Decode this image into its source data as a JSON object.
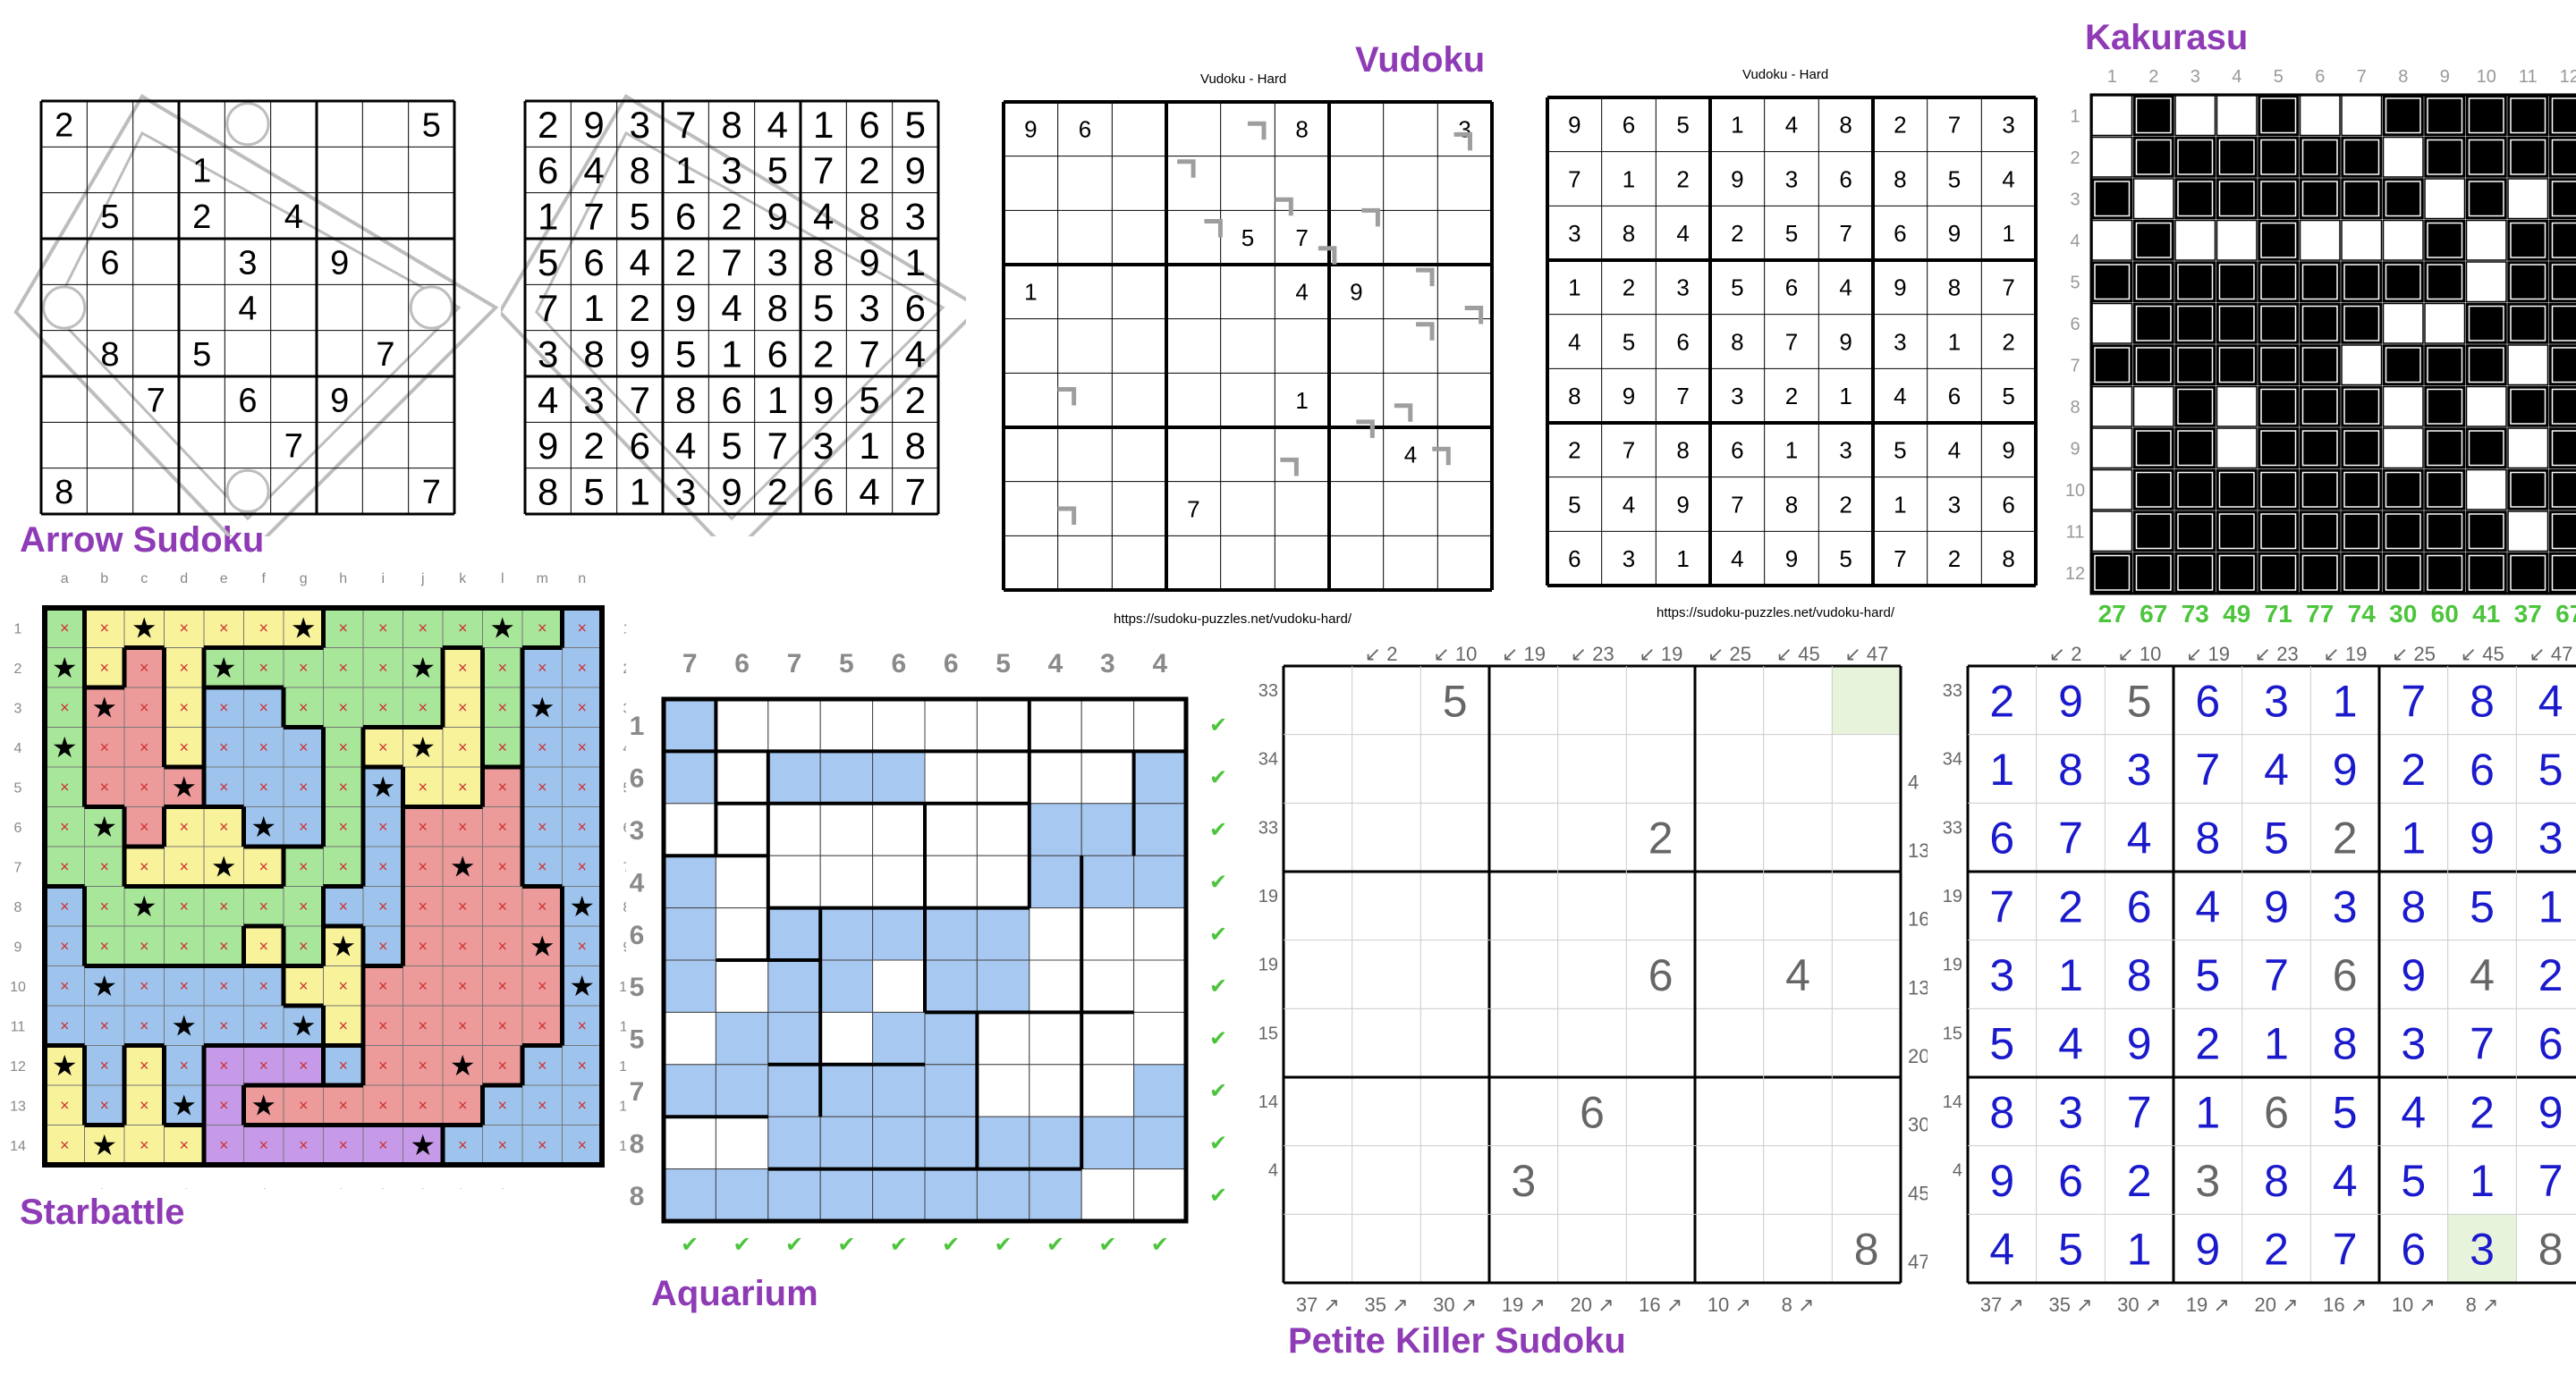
{
  "labels": {
    "arrow": "Arrow Sudoku",
    "starbattle": "Starbattle",
    "aquarium": "Aquarium",
    "vudoku": "Vudoku",
    "kakurasu": "Kakurasu",
    "petite": "Petite Killer Sudoku"
  },
  "vudoku": {
    "title1": "Vudoku - Hard",
    "title2": "Vudoku - Hard",
    "url1": "https://sudoku-puzzles.net/vudoku-hard/",
    "url2": "https://sudoku-puzzles.net/vudoku-hard/",
    "given": [
      [
        "9",
        "6",
        "",
        "",
        "",
        "8",
        "",
        "",
        "3"
      ],
      [
        "",
        "",
        "",
        "",
        "",
        "",
        "",
        "",
        ""
      ],
      [
        "",
        "",
        "",
        "",
        "5",
        "7",
        "",
        "",
        ""
      ],
      [
        "1",
        "",
        "",
        "",
        "",
        "4",
        "9",
        "",
        ""
      ],
      [
        "",
        "",
        "",
        "",
        "",
        "",
        "",
        "",
        ""
      ],
      [
        "",
        "",
        "",
        "",
        "",
        "1",
        "",
        "",
        ""
      ],
      [
        "",
        "",
        "",
        "",
        "",
        "",
        "",
        "4",
        ""
      ],
      [
        "",
        "",
        "",
        "7",
        "",
        "",
        "",
        "",
        ""
      ],
      [
        "",
        "",
        "",
        "",
        "",
        "",
        "",
        "",
        ""
      ]
    ],
    "solution": [
      [
        "9",
        "6",
        "5",
        "1",
        "4",
        "8",
        "2",
        "7",
        "3"
      ],
      [
        "7",
        "1",
        "2",
        "9",
        "3",
        "6",
        "8",
        "5",
        "4"
      ],
      [
        "3",
        "8",
        "4",
        "2",
        "5",
        "7",
        "6",
        "9",
        "1"
      ],
      [
        "1",
        "2",
        "3",
        "5",
        "6",
        "4",
        "9",
        "8",
        "7"
      ],
      [
        "4",
        "5",
        "6",
        "8",
        "7",
        "9",
        "3",
        "1",
        "2"
      ],
      [
        "8",
        "9",
        "7",
        "3",
        "2",
        "1",
        "4",
        "6",
        "5"
      ],
      [
        "2",
        "7",
        "8",
        "6",
        "1",
        "3",
        "5",
        "4",
        "9"
      ],
      [
        "5",
        "4",
        "9",
        "7",
        "8",
        "2",
        "1",
        "3",
        "6"
      ],
      [
        "6",
        "3",
        "1",
        "4",
        "9",
        "5",
        "7",
        "2",
        "8"
      ]
    ]
  },
  "arrow": {
    "given": [
      [
        "2",
        "",
        "",
        "",
        "",
        "",
        "",
        "",
        "5"
      ],
      [
        "",
        "",
        "",
        "1",
        "",
        "",
        "",
        "",
        ""
      ],
      [
        "",
        "5",
        "",
        "2",
        "",
        "4",
        "",
        "",
        ""
      ],
      [
        "",
        "6",
        "",
        "",
        "3",
        "",
        "9",
        "",
        ""
      ],
      [
        "",
        "",
        "",
        "",
        "4",
        "",
        "",
        "",
        ""
      ],
      [
        "",
        "8",
        "",
        "5",
        "",
        "",
        "",
        "7",
        ""
      ],
      [
        "",
        "",
        "7",
        "",
        "6",
        "",
        "9",
        "",
        ""
      ],
      [
        "",
        "",
        "",
        "",
        "",
        "7",
        "",
        "",
        ""
      ],
      [
        "8",
        "",
        "",
        "",
        "",
        "",
        "",
        "",
        "7"
      ]
    ],
    "solution": [
      [
        "2",
        "9",
        "3",
        "7",
        "8",
        "4",
        "1",
        "6",
        "5"
      ],
      [
        "6",
        "4",
        "8",
        "1",
        "3",
        "5",
        "7",
        "2",
        "9"
      ],
      [
        "1",
        "7",
        "5",
        "6",
        "2",
        "9",
        "4",
        "8",
        "3"
      ],
      [
        "5",
        "6",
        "4",
        "2",
        "7",
        "3",
        "8",
        "9",
        "1"
      ],
      [
        "7",
        "1",
        "2",
        "9",
        "4",
        "8",
        "5",
        "3",
        "6"
      ],
      [
        "3",
        "8",
        "9",
        "5",
        "1",
        "6",
        "2",
        "7",
        "4"
      ],
      [
        "4",
        "3",
        "7",
        "8",
        "6",
        "1",
        "9",
        "5",
        "2"
      ],
      [
        "9",
        "2",
        "6",
        "4",
        "5",
        "7",
        "3",
        "1",
        "8"
      ],
      [
        "8",
        "5",
        "1",
        "3",
        "9",
        "2",
        "6",
        "4",
        "7"
      ]
    ]
  },
  "kakurasu": {
    "col_labels": [
      "1",
      "2",
      "3",
      "4",
      "5",
      "6",
      "7",
      "8",
      "9",
      "10",
      "11",
      "12"
    ],
    "row_labels": [
      "1",
      "2",
      "3",
      "4",
      "5",
      "6",
      "7",
      "8",
      "9",
      "10",
      "11",
      "12"
    ],
    "bottom_clues": [
      "27",
      "67",
      "73",
      "49",
      "71",
      "77",
      "74",
      "30",
      "60",
      "41",
      "37",
      "67"
    ],
    "grid": [
      [
        0,
        1,
        0,
        0,
        1,
        0,
        0,
        1,
        1,
        1,
        1,
        1
      ],
      [
        0,
        1,
        1,
        1,
        1,
        1,
        1,
        0,
        1,
        1,
        1,
        1
      ],
      [
        1,
        0,
        1,
        1,
        1,
        1,
        1,
        1,
        0,
        1,
        0,
        1
      ],
      [
        0,
        1,
        0,
        0,
        1,
        0,
        0,
        0,
        1,
        0,
        1,
        1
      ],
      [
        1,
        1,
        1,
        1,
        1,
        1,
        1,
        1,
        1,
        0,
        1,
        1
      ],
      [
        0,
        1,
        1,
        1,
        1,
        1,
        1,
        0,
        0,
        1,
        1,
        1
      ],
      [
        1,
        1,
        1,
        1,
        1,
        1,
        0,
        1,
        1,
        1,
        0,
        1
      ],
      [
        0,
        0,
        1,
        0,
        1,
        1,
        1,
        0,
        1,
        0,
        1,
        1
      ],
      [
        0,
        1,
        1,
        0,
        1,
        1,
        1,
        0,
        1,
        1,
        0,
        1
      ],
      [
        0,
        1,
        1,
        1,
        1,
        1,
        1,
        1,
        1,
        0,
        1,
        1
      ],
      [
        0,
        1,
        1,
        1,
        1,
        1,
        1,
        1,
        1,
        1,
        0,
        1
      ],
      [
        1,
        1,
        1,
        1,
        1,
        1,
        1,
        1,
        1,
        1,
        1,
        1
      ]
    ]
  },
  "starbattle": {
    "col_letters": [
      "a",
      "b",
      "c",
      "d",
      "e",
      "f",
      "g",
      "h",
      "i",
      "j",
      "k",
      "l",
      "m",
      "n"
    ],
    "row_numbers": [
      "1",
      "2",
      "3",
      "4",
      "5",
      "6",
      "7",
      "8",
      "9",
      "10",
      "11",
      "12",
      "13",
      "14"
    ],
    "colors": {
      "Y": "#f8f29a",
      "G": "#a8e69a",
      "R": "#ec9a9a",
      "B": "#9ec4ee",
      "P": "#c69ae8"
    },
    "regions": [
      "GYYYYYYGGGGGGB",
      "GYRYGGGGGGYGBB",
      "GRRYBBGGGGYGBB",
      "GRRYBBBGYYYGBB",
      "GRRRBBBGBYYRBB",
      "GGRYYBBGBRRRBB",
      "GGYYYYGGBRRRBB",
      "BGGGGGGBBRRRRB",
      "BGGGGYGYBRRRRB",
      "BBBBBBYYRRRRRB",
      "BBBBBBBYRRRRRB",
      "YBYBPPPBRRRRBB",
      "YBYBPRRRRRRBBB",
      "YYYYPPPPPPBBBB"
    ],
    "stars": [
      [
        0,
        2
      ],
      [
        0,
        6
      ],
      [
        0,
        11
      ],
      [
        1,
        0
      ],
      [
        1,
        4
      ],
      [
        1,
        9
      ],
      [
        2,
        1
      ],
      [
        2,
        12
      ],
      [
        3,
        0
      ],
      [
        3,
        9
      ],
      [
        4,
        3
      ],
      [
        4,
        8
      ],
      [
        5,
        1
      ],
      [
        5,
        5
      ],
      [
        6,
        4
      ],
      [
        6,
        10
      ],
      [
        7,
        2
      ],
      [
        7,
        13
      ],
      [
        8,
        7
      ],
      [
        8,
        12
      ],
      [
        9,
        1
      ],
      [
        9,
        13
      ],
      [
        10,
        3
      ],
      [
        10,
        6
      ],
      [
        11,
        0
      ],
      [
        11,
        10
      ],
      [
        12,
        3
      ],
      [
        12,
        5
      ],
      [
        13,
        1
      ],
      [
        13,
        9
      ]
    ],
    "cross": "×",
    "star": "★"
  },
  "aquarium": {
    "col_clues": [
      "7",
      "6",
      "7",
      "5",
      "6",
      "6",
      "5",
      "4",
      "3",
      "4"
    ],
    "row_clues": [
      "1",
      "6",
      "3",
      "4",
      "6",
      "5",
      "5",
      "7",
      "8",
      "8"
    ],
    "check": "✔",
    "water": [
      "1000000000",
      "1011100001",
      "0000000111",
      "1000000111",
      "1011111000",
      "1011011000",
      "0110110000",
      "1111110001",
      "0011111111",
      "1111111100"
    ]
  },
  "petite": {
    "top": [
      "2",
      "10",
      "19",
      "23",
      "19",
      "25",
      "45",
      "47"
    ],
    "left": [
      "33",
      "34",
      "33",
      "19",
      "19",
      "15",
      "14",
      "4",
      ""
    ],
    "right": [
      "",
      "4",
      "13",
      "16",
      "13",
      "20",
      "30",
      "45",
      "47"
    ],
    "bottom": [
      "37",
      "35",
      "30",
      "19",
      "20",
      "16",
      "10",
      "8"
    ],
    "given": [
      [
        "",
        "",
        "5",
        "",
        "",
        "",
        "",
        "",
        ""
      ],
      [
        "",
        "",
        "",
        "",
        "",
        "",
        "",
        "",
        ""
      ],
      [
        "",
        "",
        "",
        "",
        "",
        "2",
        "",
        "",
        ""
      ],
      [
        "",
        "",
        "",
        "",
        "",
        "",
        "",
        "",
        ""
      ],
      [
        "",
        "",
        "",
        "",
        "",
        "6",
        "",
        "4",
        ""
      ],
      [
        "",
        "",
        "",
        "",
        "",
        "",
        "",
        "",
        ""
      ],
      [
        "",
        "",
        "",
        "",
        "6",
        "",
        "",
        "",
        ""
      ],
      [
        "",
        "",
        "",
        "3",
        "",
        "",
        "",
        "",
        ""
      ],
      [
        "",
        "",
        "",
        "",
        "",
        "",
        "",
        "",
        "8"
      ]
    ],
    "solution": [
      [
        "2",
        "9",
        "5",
        "6",
        "3",
        "1",
        "7",
        "8",
        "4"
      ],
      [
        "1",
        "8",
        "3",
        "7",
        "4",
        "9",
        "2",
        "6",
        "5"
      ],
      [
        "6",
        "7",
        "4",
        "8",
        "5",
        "2",
        "1",
        "9",
        "3"
      ],
      [
        "7",
        "2",
        "6",
        "4",
        "9",
        "3",
        "8",
        "5",
        "1"
      ],
      [
        "3",
        "1",
        "8",
        "5",
        "7",
        "6",
        "9",
        "4",
        "2"
      ],
      [
        "5",
        "4",
        "9",
        "2",
        "1",
        "8",
        "3",
        "7",
        "6"
      ],
      [
        "8",
        "3",
        "7",
        "1",
        "6",
        "5",
        "4",
        "2",
        "9"
      ],
      [
        "9",
        "6",
        "2",
        "3",
        "8",
        "4",
        "5",
        "1",
        "7"
      ],
      [
        "4",
        "5",
        "1",
        "9",
        "2",
        "7",
        "6",
        "3",
        "8"
      ]
    ],
    "sol_givens": [
      [
        0,
        2
      ],
      [
        2,
        5
      ],
      [
        4,
        5
      ],
      [
        4,
        7
      ],
      [
        6,
        4
      ],
      [
        7,
        3
      ],
      [
        8,
        8
      ]
    ],
    "highlight_top": [
      0,
      8
    ],
    "highlight_sol": [
      8,
      7
    ]
  }
}
